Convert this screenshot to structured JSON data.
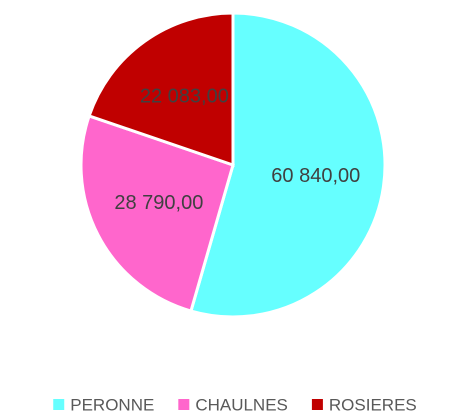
{
  "chart_data": {
    "type": "pie",
    "categories": [
      "PERONNE",
      "CHAULNES",
      "ROSIERES"
    ],
    "values": [
      60840,
      28790,
      22083
    ],
    "value_labels": [
      "60 840,00",
      "28 790,00",
      "22 083,00"
    ],
    "colors": [
      "#66ffff",
      "#ff66cc",
      "#c00000"
    ],
    "legend": "bottom"
  }
}
